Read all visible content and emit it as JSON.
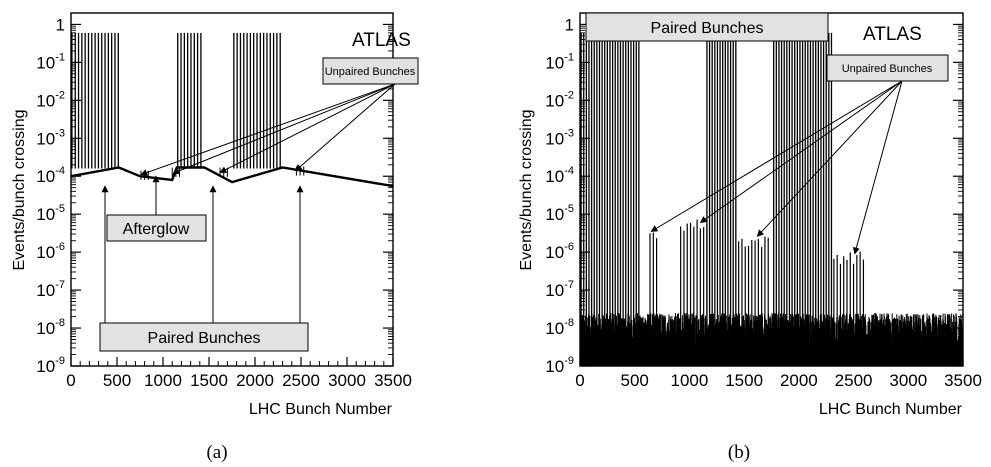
{
  "chart_data": [
    {
      "type": "bar",
      "panel_label": "(a)",
      "ylabel": "Events/bunch crossing",
      "xlabel": "LHC Bunch Number",
      "xlim": [
        0,
        3500
      ],
      "ylim": [
        1e-09,
        2
      ],
      "yscale": "log",
      "x_ticks": [
        "0",
        "500",
        "1000",
        "1500",
        "2000",
        "2500",
        "3000",
        "3500"
      ],
      "y_ticks": [
        {
          "base": "10",
          "exp": "-9"
        },
        {
          "base": "10",
          "exp": "-8"
        },
        {
          "base": "10",
          "exp": "-7"
        },
        {
          "base": "10",
          "exp": "-6"
        },
        {
          "base": "10",
          "exp": "-5"
        },
        {
          "base": "10",
          "exp": "-4"
        },
        {
          "base": "10",
          "exp": "-3"
        },
        {
          "base": "10",
          "exp": "-2"
        },
        {
          "base": "10",
          "exp": "-1"
        },
        {
          "base": "1",
          "exp": ""
        }
      ],
      "atlas_label": "ATLAS",
      "annotations": {
        "unpaired": "Unpaired Bunches",
        "afterglow": "Afterglow",
        "paired": "Paired Bunches"
      },
      "paired_trains": [
        [
          0,
          540
        ],
        [
          1150,
          1440
        ],
        [
          1760,
          2300
        ]
      ],
      "paired_level": 0.6,
      "afterglow_curve": [
        [
          0,
          0.0001
        ],
        [
          520,
          0.00017
        ],
        [
          750,
          0.0001
        ],
        [
          1100,
          8e-05
        ],
        [
          1150,
          0.00017
        ],
        [
          1450,
          0.00017
        ],
        [
          1750,
          7e-05
        ],
        [
          2300,
          0.00017
        ],
        [
          3500,
          5.5e-05
        ]
      ],
      "unpaired_bunches": [
        {
          "x": 760,
          "y": 0.0001
        },
        {
          "x": 1100,
          "y": 0.00012
        },
        {
          "x": 1620,
          "y": 0.00012
        },
        {
          "x": 2450,
          "y": 0.00013
        }
      ]
    },
    {
      "type": "bar",
      "panel_label": "(b)",
      "ylabel": "Events/bunch crossing",
      "xlabel": "LHC Bunch Number",
      "xlim": [
        0,
        3500
      ],
      "ylim": [
        1e-09,
        2
      ],
      "yscale": "log",
      "x_ticks": [
        "0",
        "500",
        "1000",
        "1500",
        "2000",
        "2500",
        "3000",
        "3500"
      ],
      "y_ticks": [
        {
          "base": "10",
          "exp": "-9"
        },
        {
          "base": "10",
          "exp": "-8"
        },
        {
          "base": "10",
          "exp": "-7"
        },
        {
          "base": "10",
          "exp": "-6"
        },
        {
          "base": "10",
          "exp": "-5"
        },
        {
          "base": "10",
          "exp": "-4"
        },
        {
          "base": "10",
          "exp": "-3"
        },
        {
          "base": "10",
          "exp": "-2"
        },
        {
          "base": "10",
          "exp": "-1"
        },
        {
          "base": "1",
          "exp": ""
        }
      ],
      "atlas_label": "ATLAS",
      "annotations": {
        "unpaired": "Unpaired Bunches",
        "paired": "Paired Bunches"
      },
      "paired_trains": [
        [
          0,
          540
        ],
        [
          1150,
          1440
        ],
        [
          1760,
          2300
        ]
      ],
      "paired_level": 0.6,
      "noise_level": 1e-08,
      "unpaired_groups": [
        {
          "x0": 640,
          "x1": 700,
          "y": 2.5e-06
        },
        {
          "x0": 920,
          "x1": 1180,
          "y": 5e-06
        },
        {
          "x0": 1450,
          "x1": 1740,
          "y": 1.8e-06
        },
        {
          "x0": 2320,
          "x1": 2600,
          "y": 7e-07
        }
      ]
    }
  ]
}
